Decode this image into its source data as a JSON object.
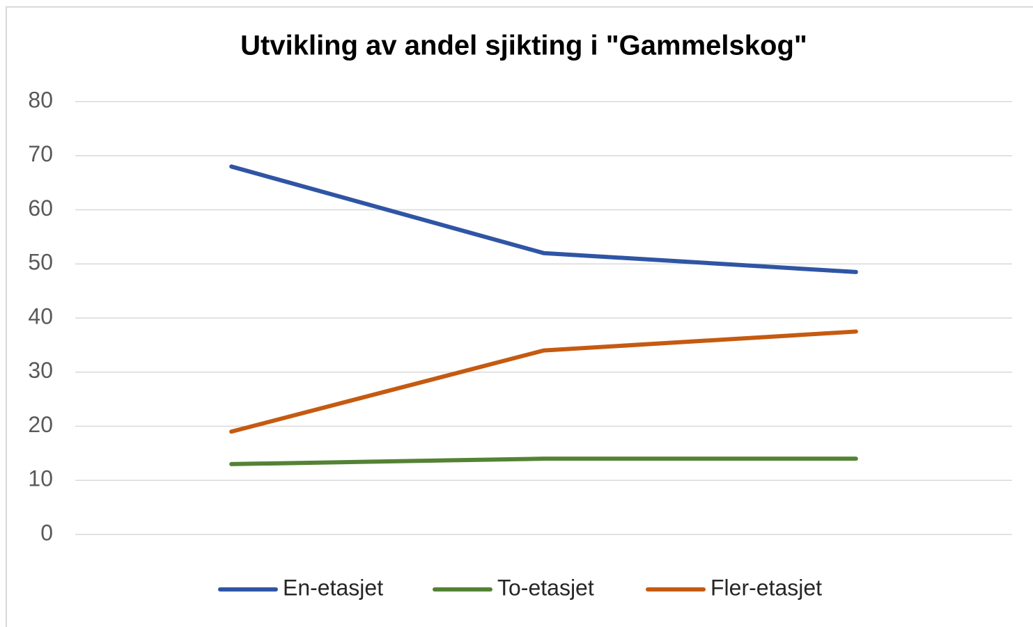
{
  "chart_data": {
    "type": "line",
    "title": "Utvikling av andel sjikting i \"Gammelskog\"",
    "categories": [
      null,
      null,
      null
    ],
    "series": [
      {
        "name": "En-etasjet",
        "color": "#2f55a4",
        "values": [
          68,
          52,
          48.5
        ]
      },
      {
        "name": "To-etasjet",
        "color": "#548235",
        "values": [
          13,
          14,
          14
        ]
      },
      {
        "name": "Fler-etasjet",
        "color": "#c55a11",
        "values": [
          19,
          34,
          37.5
        ]
      }
    ],
    "ylim": [
      0,
      80
    ],
    "yticks": [
      0,
      10,
      20,
      30,
      40,
      50,
      60,
      70,
      80
    ],
    "grid": true,
    "legend": "bottom"
  }
}
